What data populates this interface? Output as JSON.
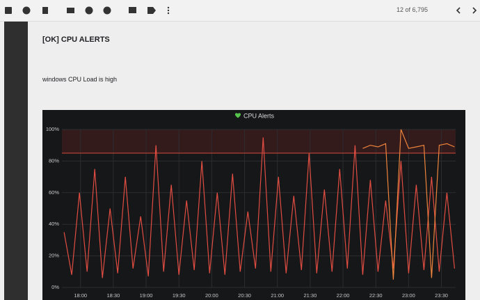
{
  "toolbar": {
    "counter": "12 of 6,795"
  },
  "email": {
    "subject": "[OK] CPU ALERTS",
    "body": "windows CPU Load is high"
  },
  "chart_data": {
    "type": "line",
    "title": "CPU Alerts",
    "x": [
      1065,
      1072,
      1079,
      1086,
      1093,
      1100,
      1107,
      1114,
      1121,
      1128,
      1135,
      1142,
      1149,
      1156,
      1163,
      1170,
      1177,
      1184,
      1191,
      1198,
      1205,
      1212,
      1219,
      1226,
      1233,
      1240,
      1247,
      1254,
      1261,
      1268,
      1275,
      1282,
      1289,
      1296,
      1303,
      1310,
      1317,
      1324,
      1331,
      1338,
      1345,
      1352,
      1359,
      1366,
      1373,
      1380,
      1387,
      1394,
      1401,
      1408,
      1415,
      1422
    ],
    "series": [
      {
        "color": "#e24d42",
        "values": [
          35,
          8,
          60,
          10,
          75,
          6,
          50,
          9,
          70,
          12,
          45,
          7,
          90,
          10,
          65,
          8,
          55,
          11,
          80,
          9,
          60,
          8,
          72,
          10,
          48,
          12,
          95,
          10,
          70,
          9,
          58,
          11,
          85,
          9,
          62,
          10,
          75,
          12,
          90,
          8,
          68,
          10,
          55,
          12,
          80,
          9,
          65,
          11,
          70,
          10,
          60,
          12
        ]
      },
      {
        "color": "#ef843c",
        "values": [
          null,
          null,
          null,
          null,
          null,
          null,
          null,
          null,
          null,
          null,
          null,
          null,
          null,
          null,
          null,
          null,
          null,
          null,
          null,
          null,
          null,
          null,
          null,
          null,
          null,
          null,
          null,
          null,
          null,
          null,
          null,
          null,
          null,
          null,
          null,
          null,
          null,
          null,
          null,
          88,
          90,
          89,
          91,
          5,
          100,
          88,
          89,
          90,
          6,
          90,
          91,
          89
        ]
      }
    ],
    "threshold": 85,
    "xlim": [
      1063,
      1423
    ],
    "xticks": [
      {
        "value": 1080,
        "label": "18:00"
      },
      {
        "value": 1110,
        "label": "18:30"
      },
      {
        "value": 1140,
        "label": "19:00"
      },
      {
        "value": 1170,
        "label": "19:30"
      },
      {
        "value": 1200,
        "label": "20:00"
      },
      {
        "value": 1230,
        "label": "20:30"
      },
      {
        "value": 1260,
        "label": "21:00"
      },
      {
        "value": 1290,
        "label": "21:30"
      },
      {
        "value": 1320,
        "label": "22:00"
      },
      {
        "value": 1350,
        "label": "22:30"
      },
      {
        "value": 1380,
        "label": "23:00"
      },
      {
        "value": 1410,
        "label": "23:30"
      }
    ],
    "ylim": [
      0,
      100
    ],
    "yticks": [
      {
        "value": 0,
        "label": "0%"
      },
      {
        "value": 20,
        "label": "20%"
      },
      {
        "value": 40,
        "label": "40%"
      },
      {
        "value": 60,
        "label": "60%"
      },
      {
        "value": 80,
        "label": "80%"
      },
      {
        "value": 100,
        "label": "100%"
      }
    ],
    "grid": true
  }
}
